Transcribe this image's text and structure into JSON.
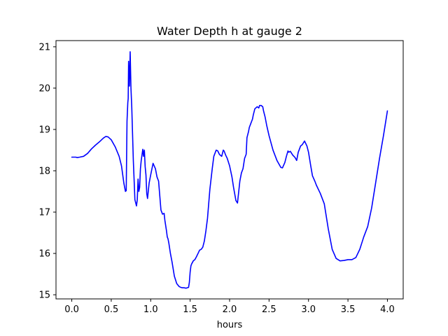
{
  "chart_data": {
    "type": "line",
    "title": "Water Depth h at gauge 2",
    "xlabel": "hours",
    "ylabel": "",
    "xlim": [
      -0.2,
      4.2
    ],
    "ylim": [
      14.9,
      21.15
    ],
    "xticks": [
      0.0,
      0.5,
      1.0,
      1.5,
      2.0,
      2.5,
      3.0,
      3.5,
      4.0
    ],
    "xtick_labels": [
      "0.0",
      "0.5",
      "1.0",
      "1.5",
      "2.0",
      "2.5",
      "3.0",
      "3.5",
      "4.0"
    ],
    "yticks": [
      15,
      16,
      17,
      18,
      19,
      20,
      21
    ],
    "ytick_labels": [
      "15",
      "16",
      "17",
      "18",
      "19",
      "20",
      "21"
    ],
    "grid": false,
    "legend": "none",
    "series": [
      {
        "color": "#0000ff",
        "x": [
          0.0,
          0.05,
          0.07,
          0.1,
          0.15,
          0.2,
          0.25,
          0.3,
          0.35,
          0.4,
          0.43,
          0.46,
          0.5,
          0.55,
          0.6,
          0.63,
          0.66,
          0.68,
          0.69,
          0.7,
          0.71,
          0.715,
          0.72,
          0.73,
          0.735,
          0.74,
          0.75,
          0.76,
          0.78,
          0.8,
          0.82,
          0.83,
          0.84,
          0.85,
          0.86,
          0.87,
          0.88,
          0.9,
          0.91,
          0.92,
          0.93,
          0.94,
          0.95,
          0.96,
          0.98,
          1.0,
          1.03,
          1.06,
          1.08,
          1.1,
          1.13,
          1.15,
          1.17,
          1.18,
          1.2,
          1.21,
          1.22,
          1.23,
          1.25,
          1.27,
          1.3,
          1.33,
          1.36,
          1.38,
          1.4,
          1.42,
          1.45,
          1.48,
          1.49,
          1.5,
          1.51,
          1.52,
          1.54,
          1.56,
          1.58,
          1.6,
          1.62,
          1.64,
          1.66,
          1.68,
          1.7,
          1.72,
          1.75,
          1.78,
          1.8,
          1.83,
          1.85,
          1.87,
          1.88,
          1.9,
          1.92,
          1.93,
          1.95,
          1.97,
          2.0,
          2.03,
          2.05,
          2.08,
          2.1,
          2.13,
          2.15,
          2.17,
          2.19,
          2.21,
          2.22,
          2.24,
          2.25,
          2.26,
          2.27,
          2.28,
          2.29,
          2.3,
          2.32,
          2.35,
          2.37,
          2.38,
          2.4,
          2.42,
          2.43,
          2.45,
          2.47,
          2.5,
          2.55,
          2.6,
          2.65,
          2.67,
          2.7,
          2.72,
          2.74,
          2.75,
          2.77,
          2.8,
          2.83,
          2.85,
          2.87,
          2.9,
          2.92,
          2.95,
          2.98,
          3.0,
          3.03,
          3.05,
          3.08,
          3.1,
          3.15,
          3.2,
          3.25,
          3.3,
          3.35,
          3.4,
          3.45,
          3.5,
          3.55,
          3.6,
          3.65,
          3.7,
          3.75,
          3.8,
          3.85,
          3.9,
          3.95,
          4.0
        ],
        "y": [
          18.33,
          18.33,
          18.32,
          18.33,
          18.35,
          18.42,
          18.53,
          18.62,
          18.7,
          18.79,
          18.83,
          18.82,
          18.75,
          18.58,
          18.35,
          18.12,
          17.7,
          17.5,
          17.52,
          19.2,
          19.65,
          19.75,
          20.65,
          20.05,
          20.4,
          20.88,
          20.0,
          19.55,
          18.25,
          17.3,
          17.15,
          17.3,
          17.8,
          17.5,
          17.6,
          18.05,
          18.25,
          18.52,
          18.35,
          18.5,
          18.1,
          17.9,
          17.45,
          17.33,
          17.7,
          17.9,
          18.18,
          18.05,
          17.85,
          17.75,
          17.05,
          16.95,
          16.97,
          16.8,
          16.55,
          16.4,
          16.35,
          16.25,
          16.0,
          15.8,
          15.45,
          15.27,
          15.2,
          15.18,
          15.17,
          15.17,
          15.16,
          15.18,
          15.3,
          15.55,
          15.7,
          15.75,
          15.82,
          15.85,
          15.92,
          16.0,
          16.08,
          16.1,
          16.15,
          16.3,
          16.55,
          16.85,
          17.55,
          18.05,
          18.35,
          18.5,
          18.48,
          18.4,
          18.38,
          18.35,
          18.5,
          18.48,
          18.38,
          18.3,
          18.12,
          17.85,
          17.6,
          17.28,
          17.22,
          17.75,
          17.95,
          18.05,
          18.3,
          18.4,
          18.8,
          18.95,
          19.05,
          19.1,
          19.15,
          19.2,
          19.25,
          19.35,
          19.5,
          19.55,
          19.52,
          19.58,
          19.58,
          19.55,
          19.45,
          19.3,
          19.1,
          18.85,
          18.5,
          18.25,
          18.08,
          18.07,
          18.2,
          18.35,
          18.48,
          18.45,
          18.47,
          18.38,
          18.32,
          18.25,
          18.45,
          18.6,
          18.63,
          18.72,
          18.6,
          18.45,
          18.1,
          17.88,
          17.75,
          17.65,
          17.45,
          17.2,
          16.6,
          16.1,
          15.88,
          15.82,
          15.83,
          15.85,
          15.85,
          15.9,
          16.1,
          16.4,
          16.65,
          17.1,
          17.7,
          18.3,
          18.85,
          19.45
        ]
      }
    ]
  }
}
